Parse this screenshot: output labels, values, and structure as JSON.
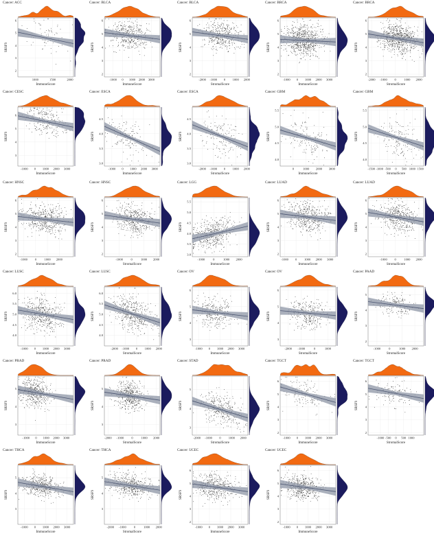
{
  "figure": {
    "density_top_color": "#f26a12",
    "density_right_color": "#1b1b5e",
    "ribbon_color": "#8e96a6",
    "line_color": "#4a5470",
    "point_color": "#111111"
  },
  "chart_data": [
    {
      "type": "scatter",
      "title": "Cancer: ACC",
      "xlabel": "ImmuneScore",
      "ylabel": "SRSF9",
      "xlim": [
        500,
        2100
      ],
      "ylim": [
        1.5,
        6.2
      ],
      "xticks": [
        1000,
        1500,
        2000
      ],
      "yticks": [
        2,
        3,
        4,
        5,
        6
      ],
      "ytick_labels": [
        "2",
        "3",
        "4",
        "5",
        "6"
      ],
      "n_points": 70,
      "x_center": 1300,
      "x_sd": 300,
      "fit": {
        "y_at_xmin": 5.05,
        "y_at_xmax": 4.15,
        "noise_sd": 0.7
      }
    },
    {
      "type": "scatter",
      "title": "Cancer: BLCA",
      "xlabel": "ImmuneScore",
      "ylabel": "SRSF9",
      "xlim": [
        -1900,
        3900
      ],
      "ylim": [
        1.8,
        6.2
      ],
      "xticks": [
        -1000,
        0,
        1000,
        2000,
        3000
      ],
      "yticks": [
        2,
        3,
        4,
        5,
        6
      ],
      "ytick_labels": [
        "2",
        "3",
        "4",
        "5",
        "6"
      ],
      "n_points": 400,
      "x_center": 800,
      "x_sd": 1000,
      "fit": {
        "y_at_xmin": 5.1,
        "y_at_xmax": 4.6,
        "noise_sd": 0.55
      }
    },
    {
      "type": "scatter",
      "title": "Cancer: BLCA",
      "xlabel": "StromalScore",
      "ylabel": "SRSF9",
      "xlim": [
        -2900,
        2100
      ],
      "ylim": [
        1.8,
        6.2
      ],
      "xticks": [
        -2000,
        -1000,
        0,
        1000,
        2000
      ],
      "yticks": [
        2,
        3,
        4,
        5,
        6
      ],
      "ytick_labels": [
        "2",
        "3",
        "4",
        "5",
        "6"
      ],
      "n_points": 400,
      "x_center": -300,
      "x_sd": 900,
      "fit": {
        "y_at_xmin": 5.15,
        "y_at_xmax": 4.6,
        "noise_sd": 0.55
      }
    },
    {
      "type": "scatter",
      "title": "Cancer: BRCA",
      "xlabel": "ImmuneScore",
      "ylabel": "SRSF9",
      "xlim": [
        -1600,
        3600
      ],
      "ylim": [
        1.8,
        6.2
      ],
      "xticks": [
        -1000,
        0,
        1000,
        2000,
        3000
      ],
      "yticks": [
        2,
        3,
        4,
        5,
        6
      ],
      "ytick_labels": [
        "2",
        "3",
        "4",
        "5",
        "6"
      ],
      "n_points": 700,
      "x_center": 600,
      "x_sd": 900,
      "fit": {
        "y_at_xmin": 4.6,
        "y_at_xmax": 4.4,
        "noise_sd": 0.55
      }
    },
    {
      "type": "scatter",
      "title": "Cancer: BRCA",
      "xlabel": "StromalScore",
      "ylabel": "SRSF9",
      "xlim": [
        -2300,
        2400
      ],
      "ylim": [
        1.8,
        6.2
      ],
      "xticks": [
        -2000,
        -1000,
        0,
        1000,
        2000
      ],
      "yticks": [
        2,
        3,
        4,
        5,
        6
      ],
      "ytick_labels": [
        "2",
        "3",
        "4",
        "5",
        "6"
      ],
      "n_points": 700,
      "x_center": 300,
      "x_sd": 800,
      "fit": {
        "y_at_xmin": 5.0,
        "y_at_xmax": 4.35,
        "noise_sd": 0.55
      }
    },
    {
      "type": "scatter",
      "title": "Cancer: CESC",
      "xlabel": "ImmuneScore",
      "ylabel": "SRSF9",
      "xlim": [
        -1600,
        3600
      ],
      "ylim": [
        2.2,
        6.6
      ],
      "xticks": [
        -1000,
        0,
        1000,
        2000,
        3000
      ],
      "yticks": [
        3,
        4,
        5,
        6
      ],
      "ytick_labels": [
        "3",
        "4",
        "5",
        "6"
      ],
      "n_points": 230,
      "x_center": 1000,
      "x_sd": 1000,
      "fit": {
        "y_at_xmin": 5.95,
        "y_at_xmax": 5.1,
        "noise_sd": 0.55
      }
    },
    {
      "type": "scatter",
      "title": "Cancer: ESCA",
      "xlabel": "ImmuneScore",
      "ylabel": "SRSF9",
      "xlim": [
        -1700,
        3500
      ],
      "ylim": [
        2.9,
        4.9
      ],
      "xticks": [
        -1000,
        0,
        1000,
        2000,
        3000
      ],
      "yticks": [
        3.0,
        3.5,
        4.0,
        4.5
      ],
      "ytick_labels": [
        "3.0",
        "3.5",
        "4.0",
        "4.5"
      ],
      "n_points": 150,
      "x_center": 500,
      "x_sd": 900,
      "fit": {
        "y_at_xmin": 4.25,
        "y_at_xmax": 3.4,
        "noise_sd": 0.3
      }
    },
    {
      "type": "scatter",
      "title": "Cancer: ESCA",
      "xlabel": "StromalScore",
      "ylabel": "SRSF9",
      "xlim": [
        -2900,
        2100
      ],
      "ylim": [
        2.9,
        4.9
      ],
      "xticks": [
        -2000,
        -1000,
        0,
        1000,
        2000
      ],
      "yticks": [
        3.0,
        3.5,
        4.0,
        4.5
      ],
      "ytick_labels": [
        "3.0",
        "3.5",
        "4.0",
        "4.5"
      ],
      "n_points": 150,
      "x_center": -400,
      "x_sd": 900,
      "fit": {
        "y_at_xmin": 4.3,
        "y_at_xmax": 3.55,
        "noise_sd": 0.3
      }
    },
    {
      "type": "scatter",
      "title": "Cancer: GBM",
      "xlabel": "ImmuneScore",
      "ylabel": "SRSF9",
      "xlim": [
        -1000,
        3300
      ],
      "ylim": [
        3.8,
        5.6
      ],
      "xticks": [
        0,
        1000,
        2000,
        3000
      ],
      "yticks": [
        4.0,
        4.5,
        5.0,
        5.5
      ],
      "ytick_labels": [
        "4.0",
        "4.5",
        "5.0",
        "5.5"
      ],
      "n_points": 150,
      "x_center": 1000,
      "x_sd": 800,
      "fit": {
        "y_at_xmin": 4.9,
        "y_at_xmax": 4.4,
        "noise_sd": 0.3
      }
    },
    {
      "type": "scatter",
      "title": "Cancer: GBM",
      "xlabel": "StromalScore",
      "ylabel": "SRSF9",
      "xlim": [
        -1700,
        1700
      ],
      "ylim": [
        3.8,
        5.6
      ],
      "xticks": [
        -1500,
        -1000,
        -500,
        0,
        500,
        1000,
        1500
      ],
      "yticks": [
        4.0,
        4.5,
        5.0,
        5.5
      ],
      "ytick_labels": [
        "4.0",
        "4.5",
        "5.0",
        "5.5"
      ],
      "n_points": 150,
      "x_center": 100,
      "x_sd": 600,
      "fit": {
        "y_at_xmin": 4.95,
        "y_at_xmax": 4.4,
        "noise_sd": 0.3
      }
    },
    {
      "type": "scatter",
      "title": "Cancer: HNSC",
      "xlabel": "ImmuneScore",
      "ylabel": "SRSF9",
      "xlim": [
        -1500,
        3200
      ],
      "ylim": [
        1.8,
        6.2
      ],
      "xticks": [
        -1000,
        0,
        1000,
        2000
      ],
      "yticks": [
        2,
        3,
        4,
        5,
        6
      ],
      "ytick_labels": [
        "2",
        "3",
        "4",
        "5",
        "6"
      ],
      "n_points": 450,
      "x_center": 800,
      "x_sd": 900,
      "fit": {
        "y_at_xmin": 4.8,
        "y_at_xmax": 4.35,
        "noise_sd": 0.55
      }
    },
    {
      "type": "scatter",
      "title": "Cancer: HNSC",
      "xlabel": "StromalScore",
      "ylabel": "SRSF9",
      "xlim": [
        -2200,
        2300
      ],
      "ylim": [
        1.8,
        6.2
      ],
      "xticks": [
        -1000,
        0,
        1000,
        2000
      ],
      "yticks": [
        2,
        3,
        4,
        5,
        6
      ],
      "ytick_labels": [
        "2",
        "3",
        "4",
        "5",
        "6"
      ],
      "n_points": 450,
      "x_center": 200,
      "x_sd": 800,
      "fit": {
        "y_at_xmin": 4.9,
        "y_at_xmax": 4.3,
        "noise_sd": 0.55
      }
    },
    {
      "type": "scatter",
      "title": "Cancer: LGG",
      "xlabel": "ImmuneScore",
      "ylabel": "SRSF9",
      "xlim": [
        -1700,
        2700
      ],
      "ylim": [
        2.9,
        5.7
      ],
      "xticks": [
        -1000,
        0,
        1000,
        2000
      ],
      "yticks": [
        3.0,
        3.5,
        4.0,
        4.5,
        5.0,
        5.5
      ],
      "ytick_labels": [
        "3.0",
        "3.5",
        "4.0",
        "4.5",
        "5.0",
        "5.5"
      ],
      "n_points": 450,
      "x_center": 0,
      "x_sd": 800,
      "fit": {
        "y_at_xmin": 3.75,
        "y_at_xmax": 4.35,
        "noise_sd": 0.35
      }
    },
    {
      "type": "scatter",
      "title": "Cancer: LUAD",
      "xlabel": "ImmuneScore",
      "ylabel": "SRSF9",
      "xlim": [
        -1400,
        3500
      ],
      "ylim": [
        1.8,
        6.2
      ],
      "xticks": [
        -1000,
        0,
        1000,
        2000,
        3000
      ],
      "yticks": [
        2,
        3,
        4,
        5,
        6
      ],
      "ytick_labels": [
        "2",
        "3",
        "4",
        "5",
        "6"
      ],
      "n_points": 450,
      "x_center": 1000,
      "x_sd": 900,
      "fit": {
        "y_at_xmin": 5.0,
        "y_at_xmax": 4.5,
        "noise_sd": 0.55
      }
    },
    {
      "type": "scatter",
      "title": "Cancer: LUAD",
      "xlabel": "StromalScore",
      "ylabel": "SRSF9",
      "xlim": [
        -2300,
        2400
      ],
      "ylim": [
        1.8,
        6.2
      ],
      "xticks": [
        -1000,
        0,
        1000,
        2000
      ],
      "yticks": [
        2,
        3,
        4,
        5,
        6
      ],
      "ytick_labels": [
        "2",
        "3",
        "4",
        "5",
        "6"
      ],
      "n_points": 450,
      "x_center": 200,
      "x_sd": 800,
      "fit": {
        "y_at_xmin": 5.1,
        "y_at_xmax": 4.4,
        "noise_sd": 0.55
      }
    },
    {
      "type": "scatter",
      "title": "Cancer: LUSC",
      "xlabel": "ImmuneScore",
      "ylabel": "SRSF9",
      "xlim": [
        -1600,
        3600
      ],
      "ylim": [
        3.5,
        6.3
      ],
      "xticks": [
        -1000,
        0,
        1000,
        2000,
        3000
      ],
      "yticks": [
        4.0,
        4.5,
        5.0,
        5.5,
        6.0
      ],
      "ytick_labels": [
        "4.0",
        "4.5",
        "5.0",
        "5.5",
        "6.0"
      ],
      "n_points": 450,
      "x_center": 700,
      "x_sd": 900,
      "fit": {
        "y_at_xmin": 5.2,
        "y_at_xmax": 4.75,
        "noise_sd": 0.4
      }
    },
    {
      "type": "scatter",
      "title": "Cancer: LUSC",
      "xlabel": "StromalScore",
      "ylabel": "SRSF9",
      "xlim": [
        -2900,
        2100
      ],
      "ylim": [
        3.5,
        6.3
      ],
      "xticks": [
        -2000,
        -1000,
        0,
        1000,
        2000
      ],
      "yticks": [
        4.0,
        4.5,
        5.0,
        5.5,
        6.0
      ],
      "ytick_labels": [
        "4.0",
        "4.5",
        "5.0",
        "5.5",
        "6.0"
      ],
      "n_points": 450,
      "x_center": -300,
      "x_sd": 900,
      "fit": {
        "y_at_xmin": 5.45,
        "y_at_xmax": 4.6,
        "noise_sd": 0.4
      }
    },
    {
      "type": "scatter",
      "title": "Cancer: OV",
      "xlabel": "ImmuneScore",
      "ylabel": "SRSF9",
      "xlim": [
        -1600,
        3600
      ],
      "ylim": [
        2.6,
        6.2
      ],
      "xticks": [
        -1000,
        0,
        1000,
        2000,
        3000
      ],
      "yticks": [
        3,
        4,
        5,
        6
      ],
      "ytick_labels": [
        "3",
        "4",
        "5",
        "6"
      ],
      "n_points": 300,
      "x_center": 600,
      "x_sd": 900,
      "fit": {
        "y_at_xmin": 4.8,
        "y_at_xmax": 4.4,
        "noise_sd": 0.45
      }
    },
    {
      "type": "scatter",
      "title": "Cancer: OV",
      "xlabel": "StromalScore",
      "ylabel": "SRSF9",
      "xlim": [
        -2600,
        1600
      ],
      "ylim": [
        2.6,
        6.2
      ],
      "xticks": [
        -2000,
        -1000,
        0,
        1000
      ],
      "yticks": [
        3,
        4,
        5,
        6
      ],
      "ytick_labels": [
        "3",
        "4",
        "5",
        "6"
      ],
      "n_points": 300,
      "x_center": -500,
      "x_sd": 700,
      "fit": {
        "y_at_xmin": 4.75,
        "y_at_xmax": 4.45,
        "noise_sd": 0.45
      }
    },
    {
      "type": "scatter",
      "title": "Cancer: PAAD",
      "xlabel": "StromalScore",
      "ylabel": "SRSF9",
      "xlim": [
        -1700,
        2700
      ],
      "ylim": [
        1.7,
        5.5
      ],
      "xticks": [
        -1000,
        0,
        1000,
        2000
      ],
      "yticks": [
        2,
        3,
        4,
        5
      ],
      "ytick_labels": [
        "2",
        "3",
        "4",
        "5"
      ],
      "n_points": 170,
      "x_center": 500,
      "x_sd": 700,
      "fit": {
        "y_at_xmin": 4.55,
        "y_at_xmax": 4.1,
        "noise_sd": 0.35
      }
    },
    {
      "type": "scatter",
      "title": "Cancer: PRAD",
      "xlabel": "ImmuneScore",
      "ylabel": "SRSF9",
      "xlim": [
        -1800,
        3700
      ],
      "ylim": [
        2.4,
        5.7
      ],
      "xticks": [
        -1000,
        0,
        1000,
        2000,
        3000
      ],
      "yticks": [
        3,
        4,
        5
      ],
      "ytick_labels": [
        "3",
        "4",
        "5"
      ],
      "n_points": 450,
      "x_center": -200,
      "x_sd": 700,
      "fit": {
        "y_at_xmin": 4.95,
        "y_at_xmax": 4.4,
        "noise_sd": 0.4
      }
    },
    {
      "type": "scatter",
      "title": "Cancer: PRAD",
      "xlabel": "StromalScore",
      "ylabel": "SRSF9",
      "xlim": [
        -2300,
        2300
      ],
      "ylim": [
        2.4,
        5.7
      ],
      "xticks": [
        -2000,
        -1000,
        0,
        1000,
        2000
      ],
      "yticks": [
        3,
        4,
        5
      ],
      "ytick_labels": [
        "3",
        "4",
        "5"
      ],
      "n_points": 450,
      "x_center": -200,
      "x_sd": 600,
      "fit": {
        "y_at_xmin": 4.8,
        "y_at_xmax": 4.35,
        "noise_sd": 0.4
      }
    },
    {
      "type": "scatter",
      "title": "Cancer: STAD",
      "xlabel": "StromalScore",
      "ylabel": "SRSF9",
      "xlim": [
        -2400,
        2400
      ],
      "ylim": [
        2.6,
        5.7
      ],
      "xticks": [
        -2000,
        -1000,
        0,
        1000,
        2000
      ],
      "yticks": [
        3,
        4,
        5
      ],
      "ytick_labels": [
        "3",
        "4",
        "5"
      ],
      "n_points": 350,
      "x_center": 0,
      "x_sd": 900,
      "fit": {
        "y_at_xmin": 4.4,
        "y_at_xmax": 3.5,
        "noise_sd": 0.4
      }
    },
    {
      "type": "scatter",
      "title": "Cancer: TGCT",
      "xlabel": "ImmuneScore",
      "ylabel": "SRSF9",
      "xlim": [
        -1600,
        3600
      ],
      "ylim": [
        1.8,
        6.4
      ],
      "xticks": [
        -1000,
        0,
        1000,
        2000,
        3000
      ],
      "yticks": [
        2,
        3,
        4,
        5,
        6
      ],
      "ytick_labels": [
        "2",
        "3",
        "4",
        "5",
        "6"
      ],
      "n_points": 130,
      "x_center": 500,
      "x_sd": 1000,
      "fit": {
        "y_at_xmin": 5.55,
        "y_at_xmax": 4.35,
        "noise_sd": 0.5
      }
    },
    {
      "type": "scatter",
      "title": "Cancer: TGCT",
      "xlabel": "StromalScore",
      "ylabel": "SRSF9",
      "xlim": [
        -1800,
        1800
      ],
      "ylim": [
        1.8,
        6.4
      ],
      "xticks": [
        -1000,
        -500,
        0,
        500,
        1000
      ],
      "yticks": [
        2,
        3,
        4,
        5,
        6
      ],
      "ytick_labels": [
        "2",
        "3",
        "4",
        "5",
        "6"
      ],
      "n_points": 130,
      "x_center": -100,
      "x_sd": 600,
      "fit": {
        "y_at_xmin": 5.45,
        "y_at_xmax": 4.65,
        "noise_sd": 0.5
      }
    },
    {
      "type": "scatter",
      "title": "Cancer: THCA",
      "xlabel": "ImmuneScore",
      "ylabel": "SRSF9",
      "xlim": [
        -1600,
        3600
      ],
      "ylim": [
        2.0,
        5.8
      ],
      "xticks": [
        -1000,
        0,
        1000,
        2000,
        3000
      ],
      "yticks": [
        3,
        4,
        5
      ],
      "ytick_labels": [
        "3",
        "4",
        "5"
      ],
      "n_points": 450,
      "x_center": 600,
      "x_sd": 900,
      "fit": {
        "y_at_xmin": 4.7,
        "y_at_xmax": 4.1,
        "noise_sd": 0.35
      }
    },
    {
      "type": "scatter",
      "title": "Cancer: THCA",
      "xlabel": "StromalScore",
      "ylabel": "SRSF9",
      "xlim": [
        -2500,
        2100
      ],
      "ylim": [
        2.0,
        5.8
      ],
      "xticks": [
        -2000,
        -1000,
        0,
        1000,
        2000
      ],
      "yticks": [
        3,
        4,
        5
      ],
      "ytick_labels": [
        "3",
        "4",
        "5"
      ],
      "n_points": 450,
      "x_center": -300,
      "x_sd": 800,
      "fit": {
        "y_at_xmin": 4.75,
        "y_at_xmax": 4.2,
        "noise_sd": 0.35
      }
    },
    {
      "type": "scatter",
      "title": "Cancer: UCEC",
      "xlabel": "ImmuneScore",
      "ylabel": "SRSF9",
      "xlim": [
        -1600,
        3600
      ],
      "ylim": [
        1.8,
        6.4
      ],
      "xticks": [
        -1000,
        0,
        1000,
        2000,
        3000
      ],
      "yticks": [
        2,
        3,
        4,
        5,
        6
      ],
      "ytick_labels": [
        "2",
        "3",
        "4",
        "5",
        "6"
      ],
      "n_points": 450,
      "x_center": 500,
      "x_sd": 900,
      "fit": {
        "y_at_xmin": 4.95,
        "y_at_xmax": 4.35,
        "noise_sd": 0.5
      }
    },
    {
      "type": "scatter",
      "title": "Cancer: UCEC",
      "xlabel": "ImmuneScore",
      "ylabel": "SRSF9",
      "xlim": [
        -1600,
        3600
      ],
      "ylim": [
        1.8,
        6.4
      ],
      "xticks": [
        -1000,
        0,
        1000,
        2000,
        3000
      ],
      "yticks": [
        2,
        3,
        4,
        5,
        6
      ],
      "ytick_labels": [
        "2",
        "3",
        "4",
        "5",
        "6"
      ],
      "n_points": 450,
      "x_center": 500,
      "x_sd": 900,
      "fit": {
        "y_at_xmin": 4.95,
        "y_at_xmax": 4.35,
        "noise_sd": 0.5
      }
    }
  ]
}
